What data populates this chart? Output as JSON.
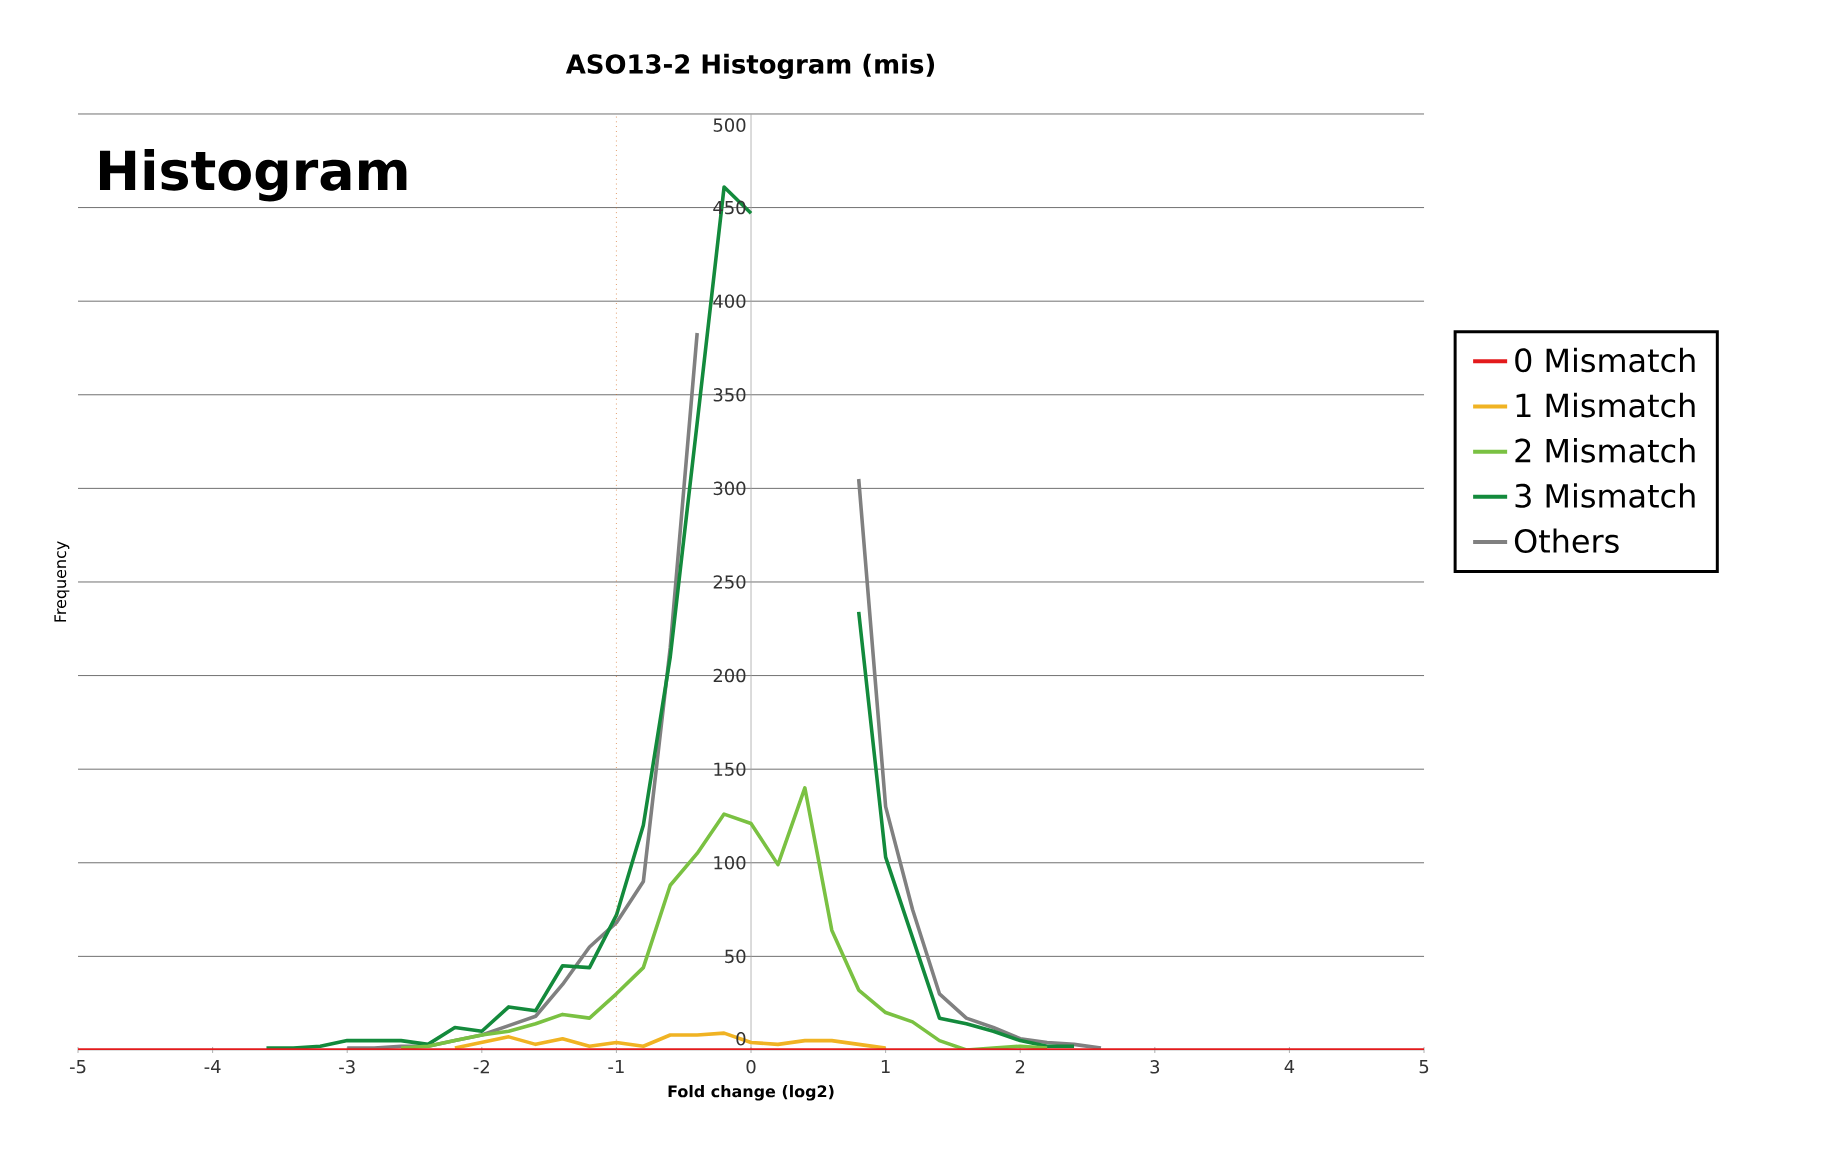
{
  "chart_data": {
    "type": "line",
    "title": "ASO13-2 Histogram (mis)",
    "xlabel": "Fold change (log2)",
    "ylabel": "Frequency",
    "annotations": [
      "Histogram"
    ],
    "x": [
      -5,
      -4.8,
      -4.6,
      -4.4,
      -4.2,
      -4,
      -3.8,
      -3.6,
      -3.4,
      -3.2,
      -3,
      -2.8,
      -2.6,
      -2.4,
      -2.2,
      -2,
      -1.8,
      -1.6,
      -1.4,
      -1.2,
      -1,
      -0.8,
      -0.6,
      -0.4,
      -0.2,
      0,
      0.2,
      0.4,
      0.6,
      0.8,
      1,
      1.2,
      1.4,
      1.6,
      1.8,
      2,
      2.2,
      2.4,
      2.6,
      2.8,
      3,
      3.2,
      3.4,
      3.6,
      3.8,
      4,
      4.2,
      4.4,
      4.6,
      4.8,
      5
    ],
    "series": [
      {
        "name": "0 Mismatch",
        "color": "#e31a1c",
        "values": [
          0,
          0,
          0,
          0,
          0,
          0,
          0,
          0,
          0,
          0,
          0,
          0,
          0,
          0,
          0,
          0,
          0,
          0,
          0,
          0,
          0,
          0,
          0,
          0,
          0,
          0,
          0,
          0,
          0,
          0,
          0,
          0,
          0,
          0,
          0,
          0,
          0,
          0,
          0,
          0,
          0,
          0,
          0,
          0,
          0,
          0,
          0,
          0,
          0,
          0,
          0
        ]
      },
      {
        "name": "1 Mismatch",
        "color": "#f0b323",
        "values": [
          null,
          null,
          null,
          null,
          null,
          null,
          null,
          null,
          null,
          null,
          null,
          null,
          null,
          null,
          1,
          4,
          7,
          3,
          6,
          2,
          4,
          2,
          8,
          8,
          9,
          4,
          3,
          5,
          5,
          3,
          1,
          null,
          null,
          null,
          null,
          null,
          null,
          null,
          null,
          null,
          null,
          null,
          null,
          null,
          null,
          null,
          null,
          null,
          null,
          null,
          null
        ]
      },
      {
        "name": "2 Mismatch",
        "color": "#7ac142",
        "values": [
          null,
          null,
          null,
          null,
          null,
          null,
          null,
          null,
          null,
          null,
          null,
          null,
          1,
          2,
          5,
          8,
          10,
          14,
          19,
          17,
          30,
          44,
          88,
          105,
          126,
          121,
          99,
          140,
          64,
          32,
          20,
          15,
          5,
          0,
          1,
          2,
          1,
          null,
          null,
          null,
          null,
          null,
          null,
          null,
          null,
          null,
          null,
          null,
          null,
          null,
          null
        ]
      },
      {
        "name": "3 Mismatch",
        "color": "#138a3c",
        "values": [
          null,
          null,
          null,
          null,
          null,
          null,
          null,
          1,
          1,
          2,
          5,
          5,
          5,
          3,
          12,
          10,
          23,
          21,
          45,
          44,
          72,
          120,
          210,
          335,
          461,
          447,
          null,
          null,
          null,
          234,
          103,
          60,
          17,
          14,
          10,
          5,
          2,
          2,
          null,
          null,
          null,
          null,
          null,
          null,
          null,
          null,
          null,
          null,
          null,
          null,
          null
        ]
      },
      {
        "name": "Others",
        "color": "#808080",
        "values": [
          null,
          null,
          null,
          null,
          null,
          null,
          null,
          null,
          null,
          null,
          1,
          1,
          2,
          2,
          5,
          8,
          13,
          18,
          35,
          55,
          68,
          90,
          215,
          383,
          null,
          null,
          null,
          null,
          null,
          305,
          130,
          75,
          30,
          17,
          12,
          6,
          4,
          3,
          1,
          null,
          null,
          null,
          null,
          null,
          null,
          null,
          null,
          null,
          null,
          null,
          null
        ]
      }
    ],
    "xlim": [
      -5,
      5
    ],
    "xticks": [
      -5,
      -4,
      -3,
      -2,
      -1,
      0,
      1,
      2,
      3,
      4,
      5
    ],
    "ylim": [
      0,
      500
    ],
    "yticks": [
      {
        "value": 0,
        "label": "0"
      },
      {
        "value": 50,
        "label": "50"
      },
      {
        "value": 100,
        "label": "100"
      },
      {
        "value": 150,
        "label": "150"
      },
      {
        "value": 200,
        "label": "200"
      },
      {
        "value": 250,
        "label": "250"
      },
      {
        "value": 300,
        "label": "300"
      },
      {
        "value": 350,
        "label": "350"
      },
      {
        "value": 400,
        "label": "400"
      },
      {
        "value": 450,
        "label": "450"
      },
      {
        "value": 500,
        "label": "500"
      }
    ],
    "grid": "y",
    "legend": "right",
    "ref_lines": [
      {
        "axis": "x",
        "value": -1,
        "color": "#d2691e",
        "line_style": "dotted"
      }
    ]
  }
}
